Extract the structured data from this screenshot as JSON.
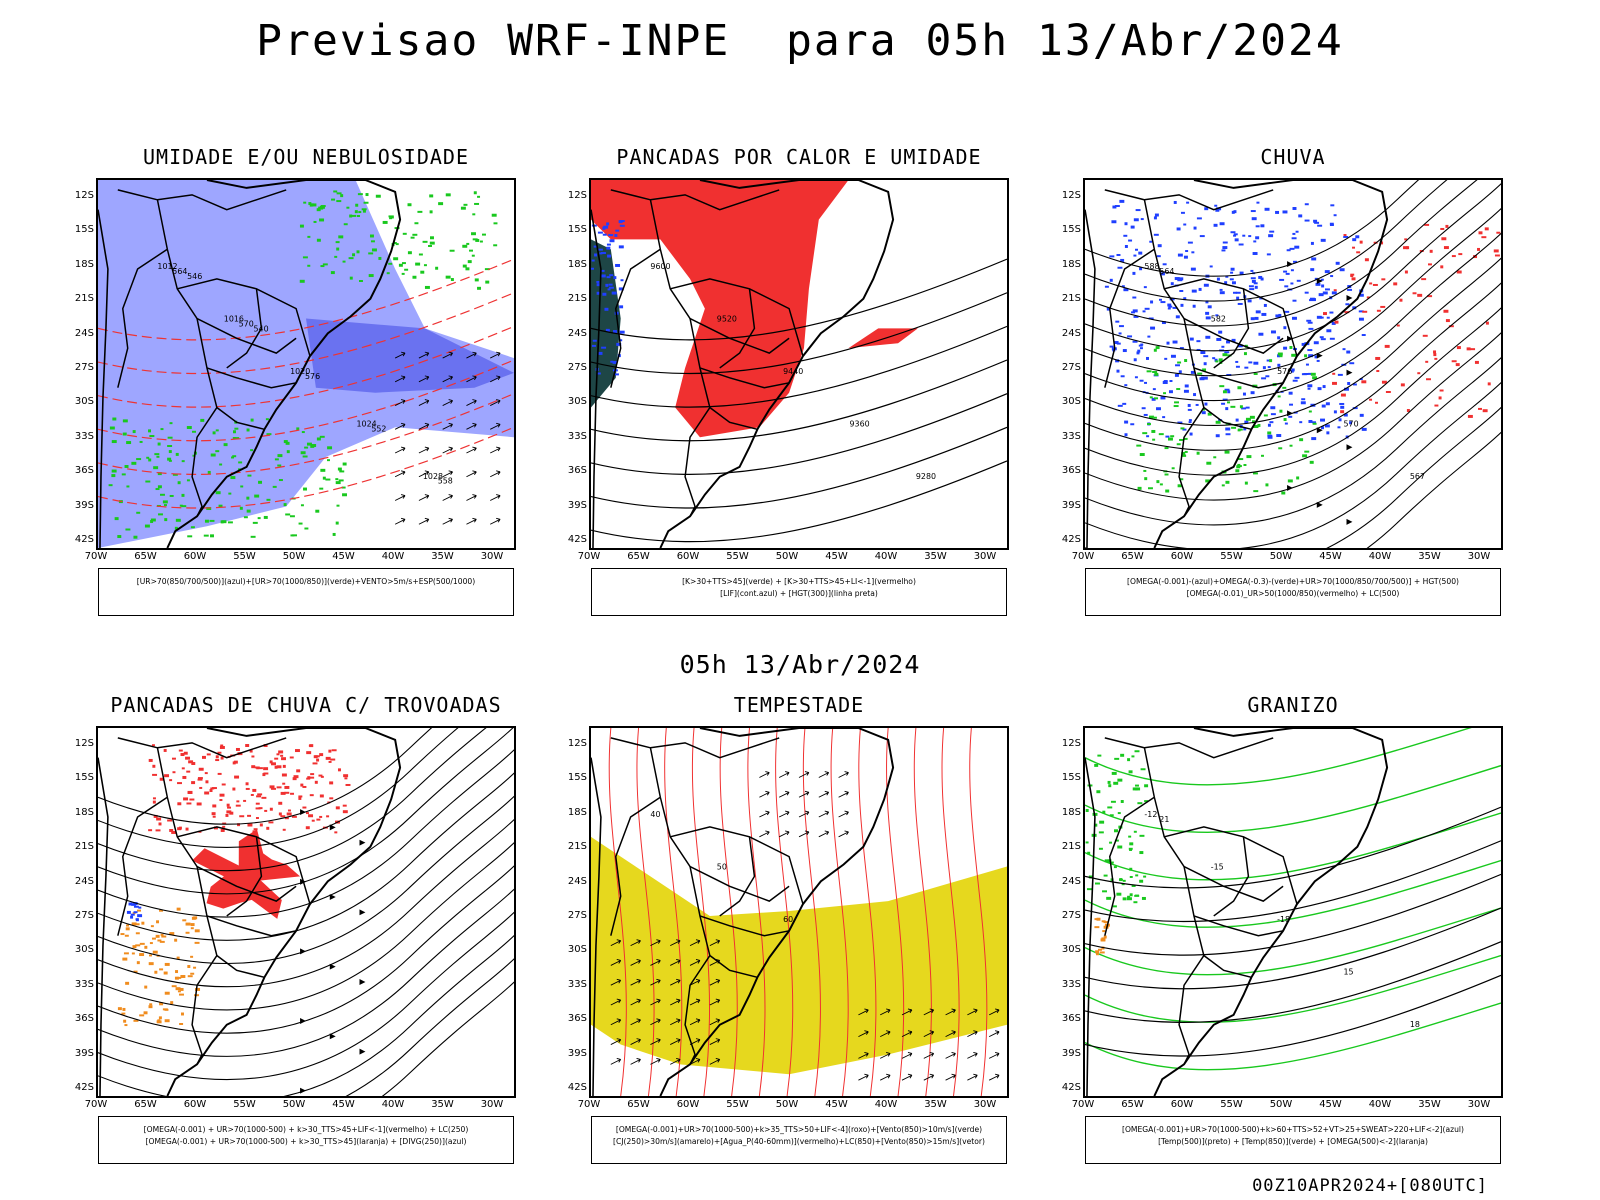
{
  "header": {
    "title": "Previsao WRF-INPE  para 05h 13/Abr/2024",
    "mid_title": "05h 13/Abr/2024",
    "footer": "00Z10APR2024+[080UTC]"
  },
  "axes": {
    "lat_labels": [
      "12S",
      "15S",
      "18S",
      "21S",
      "24S",
      "27S",
      "30S",
      "33S",
      "36S",
      "39S",
      "42S"
    ],
    "lon_labels": [
      "70W",
      "65W",
      "60W",
      "55W",
      "50W",
      "45W",
      "40W",
      "35W",
      "30W"
    ]
  },
  "colors": {
    "blue": "#1f3fff",
    "light_blue": "#9ea6ff",
    "green": "#19c81e",
    "red": "#f03030",
    "orange": "#f08c1e",
    "yellow": "#e6d81e",
    "dark_teal": "#1e4646",
    "black": "#000000"
  },
  "panels": [
    {
      "title": "UMIDADE E/OU NEBULOSIDADE",
      "legend": [
        "[UR>70(850/700/500)](azul)+[UR>70(1000/850)](verde)+VENTO>5m/s+ESP(500/1000)"
      ],
      "contour_labels": [
        "1012",
        "1016",
        "1020",
        "1024",
        "1028",
        "564",
        "570",
        "576",
        "552",
        "558",
        "546",
        "540"
      ]
    },
    {
      "title": "PANCADAS POR CALOR E UMIDADE",
      "legend": [
        "[K>30+TTS>45](verde) + [K>30+TTS>45+LI<-1](vermelho)",
        "[LIF](cont.azul) + [HGT(300)](linha preta)"
      ],
      "contour_labels": [
        "9600",
        "9520",
        "9440",
        "9360",
        "9280"
      ]
    },
    {
      "title": "CHUVA",
      "legend": [
        "[OMEGA(-0.001)-(azul)+OMEGA(-0.3)-(verde)+UR>70(1000/850/700/500)] + HGT(500)",
        "[OMEGA(-0.01)_UR>50(1000/850)(vermelho) + LC(500)"
      ],
      "contour_labels": [
        "588",
        "582",
        "576",
        "570",
        "567",
        "564"
      ]
    },
    {
      "title": "PANCADAS DE CHUVA C/ TROVOADAS",
      "legend": [
        "[OMEGA(-0.001) + UR>70(1000-500) + k>30_TTS>45+LIF<-1](vermelho) + LC(250)",
        "[OMEGA(-0.001) + UR>70(1000-500) + k>30_TTS>45](laranja) + [DIVG(250)](azul)"
      ],
      "contour_labels": []
    },
    {
      "title": "TEMPESTADE",
      "legend": [
        "[OMEGA(-0.001)+UR>70(1000-500)+k>35_TTS>50+LIF<-4](roxo)+[Vento(850)>10m/s](verde)",
        "[CJ(250)>30m/s](amarelo)+[Agua_P(40-60mm)](vermelho)+LC(850)+[Vento(850)>15m/s](vetor)"
      ],
      "contour_labels": [
        "40",
        "50",
        "60"
      ]
    },
    {
      "title": "GRANIZO",
      "legend": [
        "[OMEGA(-0.001)+UR>70(1000-500)+k>60+TTS>52+VT>25+SWEAT>220+LIF<-2](azul)",
        "[Temp(500)](preto) + [Temp(850)](verde) + [OMEGA(500)<-2](laranja)"
      ],
      "contour_labels": [
        "-12",
        "-15",
        "-18",
        "15",
        "18",
        "21"
      ]
    }
  ]
}
